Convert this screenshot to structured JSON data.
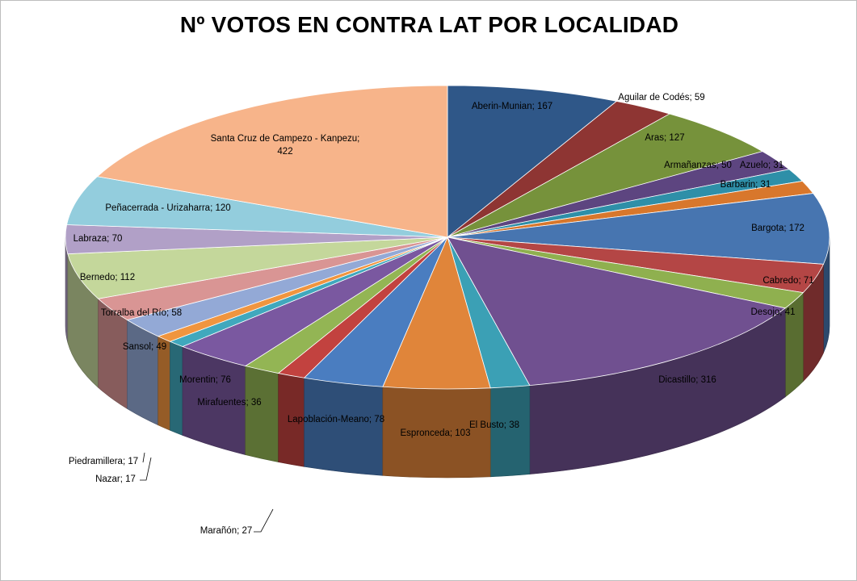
{
  "chart_data": {
    "type": "pie",
    "title": "Nº VOTOS EN CONTRA LAT POR LOCALIDAD",
    "label_separator": "; ",
    "slices": [
      {
        "name": "Aberin-Munian",
        "value": 167,
        "color": "#2f5788"
      },
      {
        "name": "Aguilar de Codés",
        "value": 59,
        "color": "#8e3533"
      },
      {
        "name": "Aras",
        "value": 127,
        "color": "#76923b"
      },
      {
        "name": "Armañanzas",
        "value": 50,
        "color": "#5d4580"
      },
      {
        "name": "Azuelo",
        "value": 31,
        "color": "#2e8fa8"
      },
      {
        "name": "Barbarin",
        "value": 31,
        "color": "#d8772c"
      },
      {
        "name": "Bargota",
        "value": 172,
        "color": "#4775b0"
      },
      {
        "name": "Cabredo",
        "value": 71,
        "color": "#b44645"
      },
      {
        "name": "Desojo",
        "value": 41,
        "color": "#8fb04f"
      },
      {
        "name": "Dicastillo",
        "value": 316,
        "color": "#705090"
      },
      {
        "name": "El Busto",
        "value": 38,
        "color": "#3ba0b5"
      },
      {
        "name": "Espronceda",
        "value": 103,
        "color": "#e0853a"
      },
      {
        "name": "Lapoblación-Meano",
        "value": 78,
        "color": "#4a7dc0"
      },
      {
        "name": "Marañón",
        "value": 27,
        "color": "#c2423f"
      },
      {
        "name": "Mirafuentes",
        "value": 36,
        "color": "#93b554"
      },
      {
        "name": "Morentin",
        "value": 76,
        "color": "#7a58a0"
      },
      {
        "name": "Nazar",
        "value": 17,
        "color": "#40a8bd"
      },
      {
        "name": "Piedramillera",
        "value": 17,
        "color": "#f0953f"
      },
      {
        "name": "Sansol",
        "value": 49,
        "color": "#93a9d6"
      },
      {
        "name": "Torralba del Río",
        "value": 58,
        "color": "#d99594"
      },
      {
        "name": "Bernedo",
        "value": 112,
        "color": "#c4d79b"
      },
      {
        "name": "Labraza",
        "value": 70,
        "color": "#b1a0c7"
      },
      {
        "name": "Peñacerrada - Urizaharra",
        "value": 120,
        "color": "#93cddd"
      },
      {
        "name": "Santa Cruz de Campezo - Kanpezu",
        "value": 422,
        "color": "#f7b48a",
        "label_lines": [
          "Santa Cruz de Campezo - Kanpezu;",
          "422"
        ]
      }
    ]
  }
}
